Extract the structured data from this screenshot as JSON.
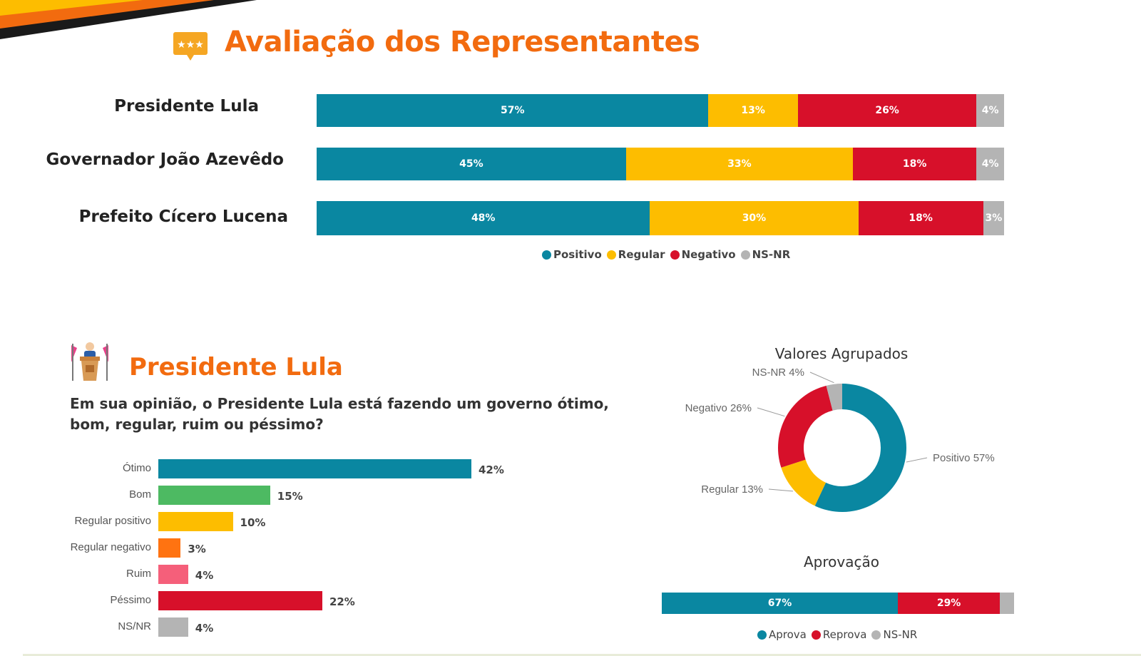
{
  "header": {
    "title": "Avaliação dos Representantes"
  },
  "colors": {
    "orange_title": "#f26b0f",
    "positivo": "#0a87a1",
    "regular": "#fdbd00",
    "negativo": "#d7102a",
    "nsnr": "#b4b4b4",
    "bom": "#4dba62",
    "regular_negativo": "#ff7311",
    "ruim": "#f55f7a"
  },
  "chart_data": [
    {
      "type": "bar",
      "stacked": true,
      "orientation": "horizontal",
      "categories": [
        "Presidente Lula",
        "Governador João Azevêdo",
        "Prefeito Cícero Lucena"
      ],
      "series": [
        {
          "name": "Positivo",
          "values": [
            57,
            45,
            48
          ],
          "labels": [
            "57%",
            "45%",
            "48%"
          ]
        },
        {
          "name": "Regular",
          "values": [
            13,
            33,
            30
          ],
          "labels": [
            "13%",
            "33%",
            "30%"
          ]
        },
        {
          "name": "Negativo",
          "values": [
            26,
            18,
            18
          ],
          "labels": [
            "26%",
            "18%",
            "18%"
          ]
        },
        {
          "name": "NS-NR",
          "values": [
            4,
            4,
            3
          ],
          "labels": [
            "4%",
            "4%",
            "3%"
          ]
        }
      ],
      "legend_position": "bottom"
    },
    {
      "type": "bar",
      "orientation": "horizontal",
      "title": "Presidente Lula",
      "question": "Em sua opinião, o Presidente Lula está fazendo um governo ótimo, bom, regular, ruim ou péssimo?",
      "categories": [
        "Ótimo",
        "Bom",
        "Regular positivo",
        "Regular negativo",
        "Ruim",
        "Péssimo",
        "NS/NR"
      ],
      "values": [
        42,
        15,
        10,
        3,
        4,
        22,
        4
      ],
      "labels": [
        "42%",
        "15%",
        "10%",
        "3%",
        "4%",
        "22%",
        "4%"
      ]
    },
    {
      "type": "pie",
      "donut": true,
      "title": "Valores Agrupados",
      "categories": [
        "Positivo",
        "Regular",
        "Negativo",
        "NS-NR"
      ],
      "values": [
        57,
        13,
        26,
        4
      ],
      "labels": [
        "Positivo 57%",
        "Regular 13%",
        "Negativo 26%",
        "NS-NR 4%"
      ]
    },
    {
      "type": "bar",
      "stacked": true,
      "orientation": "horizontal",
      "title": "Aprovação",
      "series": [
        {
          "name": "Aprova",
          "values": [
            67
          ],
          "labels": [
            "67%"
          ]
        },
        {
          "name": "Reprova",
          "values": [
            29
          ],
          "labels": [
            "29%"
          ]
        },
        {
          "name": "NS-NR",
          "values": [
            4
          ],
          "labels": [
            ""
          ]
        }
      ],
      "legend_position": "bottom"
    }
  ]
}
